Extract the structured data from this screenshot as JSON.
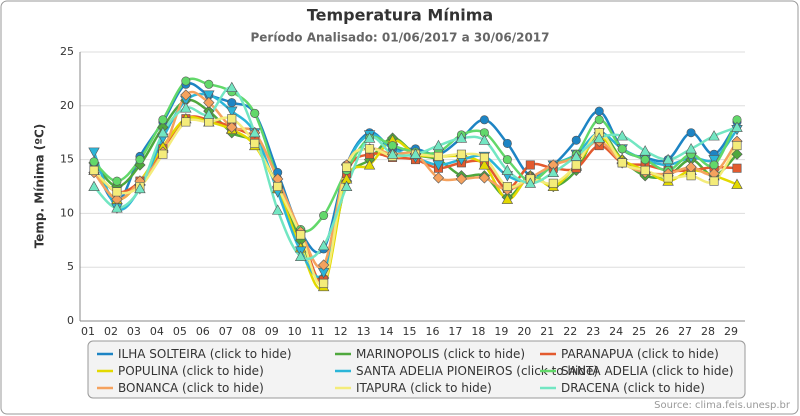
{
  "chart_data": {
    "type": "line",
    "title": "Temperatura Mínima",
    "subtitle": "Período Analisado: 01/06/2017 a 30/06/2017",
    "y_label": "Temp. Mínima (ºC)",
    "source": "Source: clima.feis.unesp.br",
    "legend_suffix": "(click to hide)",
    "categories": [
      "01",
      "02",
      "03",
      "04",
      "05",
      "06",
      "07",
      "08",
      "09",
      "10",
      "11",
      "12",
      "13",
      "14",
      "15",
      "16",
      "17",
      "18",
      "19",
      "20",
      "21",
      "22",
      "23",
      "24",
      "25",
      "26",
      "27",
      "28",
      "29"
    ],
    "ylim": [
      0,
      25
    ],
    "yticks": [
      0,
      5,
      10,
      15,
      20,
      25
    ],
    "grid": true,
    "series": [
      {
        "name": "ILHA SOLTEIRA",
        "color": "#1d84c4",
        "marker": "circle",
        "values": [
          14.5,
          11,
          15.3,
          18.5,
          22,
          21,
          20.3,
          19.3,
          13.8,
          8.3,
          6.7,
          14.5,
          17.5,
          16,
          16,
          15.5,
          17,
          18.7,
          16.5,
          13.5,
          14.5,
          16.8,
          19.5,
          16,
          15.2,
          15,
          17.5,
          15.5,
          18.5
        ]
      },
      {
        "name": "MARINOPOLIS",
        "color": "#4fa83d",
        "marker": "diamond",
        "values": [
          14.7,
          12.5,
          14.5,
          18,
          20.5,
          19.5,
          17.5,
          16.5,
          12.5,
          7.5,
          4,
          13,
          15,
          17,
          15.5,
          15,
          13.5,
          13.5,
          11.5,
          13.5,
          12.5,
          14,
          17.5,
          15,
          13.5,
          13.5,
          15,
          13.5,
          15.5
        ]
      },
      {
        "name": "PARANAPUA",
        "color": "#e35a2e",
        "marker": "square",
        "values": [
          14,
          12,
          13,
          16,
          18.8,
          18.7,
          18,
          16.8,
          12.3,
          8.2,
          3.8,
          13.7,
          15.5,
          15.2,
          15,
          14.2,
          14.7,
          14.7,
          12.3,
          14.5,
          14.2,
          14.2,
          16.3,
          14.7,
          14.5,
          14,
          14,
          14.3,
          14.2
        ]
      },
      {
        "name": "POPULINA",
        "color": "#e3d900",
        "marker": "triangle",
        "values": [
          14,
          11.3,
          13,
          16.2,
          18.8,
          18.5,
          17.8,
          16.3,
          12.3,
          6.8,
          3.2,
          13.2,
          14.5,
          16.8,
          15.5,
          15.3,
          15.3,
          14.5,
          11.3,
          13.5,
          12.5,
          14.5,
          17,
          15,
          14,
          13,
          14,
          13.5,
          12.7
        ]
      },
      {
        "name": "SANTA ADELIA PIONEIROS",
        "color": "#2bb5d8",
        "marker": "triangle-down",
        "values": [
          15.7,
          10.5,
          12.3,
          17,
          20.5,
          21,
          19.5,
          17.5,
          12,
          6.5,
          4.5,
          14.2,
          17.3,
          16,
          15.2,
          14.5,
          15,
          15.3,
          13.5,
          13,
          14.5,
          15.5,
          17.5,
          16,
          15,
          14.5,
          15.2,
          15,
          17.8
        ]
      },
      {
        "name": "SANTA ADELIA",
        "color": "#62d86a",
        "marker": "circle",
        "values": [
          14.8,
          13,
          15,
          18.7,
          22.3,
          22,
          21.3,
          19.3,
          13.2,
          8.5,
          9.8,
          14,
          17,
          16.3,
          15.7,
          15.7,
          17.3,
          17.5,
          15,
          13,
          14.5,
          15.5,
          18.7,
          16,
          15,
          14,
          15.5,
          14.5,
          18.7
        ]
      },
      {
        "name": "BONANCA",
        "color": "#f5a25e",
        "marker": "diamond",
        "values": [
          13.8,
          11.3,
          13,
          15.7,
          21,
          20.3,
          18,
          17.5,
          13.2,
          8.3,
          5.2,
          14.5,
          16,
          15.5,
          15.5,
          13.3,
          13.2,
          13.3,
          12.2,
          13.3,
          14.5,
          15.2,
          16.7,
          14.7,
          13.8,
          13.7,
          14.3,
          13.7,
          16.7
        ]
      },
      {
        "name": "ITAPURA",
        "color": "#f4ec7a",
        "marker": "square",
        "values": [
          14,
          12,
          12.5,
          15.5,
          18.5,
          18.5,
          18.8,
          16.5,
          12.5,
          8,
          3.5,
          14.3,
          16,
          15.3,
          15.5,
          15.3,
          15.5,
          15.2,
          12.5,
          13.2,
          12.8,
          14.5,
          17.5,
          14.7,
          14,
          13.3,
          13.5,
          13,
          16.3
        ]
      },
      {
        "name": "DRACENA",
        "color": "#72e6c2",
        "marker": "triangle",
        "values": [
          12.5,
          10.5,
          12.3,
          17.5,
          19.8,
          19.2,
          21.7,
          17.5,
          10.3,
          6,
          7,
          12.5,
          17,
          15.5,
          15.5,
          16.3,
          17,
          16.8,
          14,
          12.8,
          13.8,
          15.3,
          17,
          17.2,
          15.8,
          15,
          16,
          17.2,
          18
        ]
      }
    ]
  }
}
